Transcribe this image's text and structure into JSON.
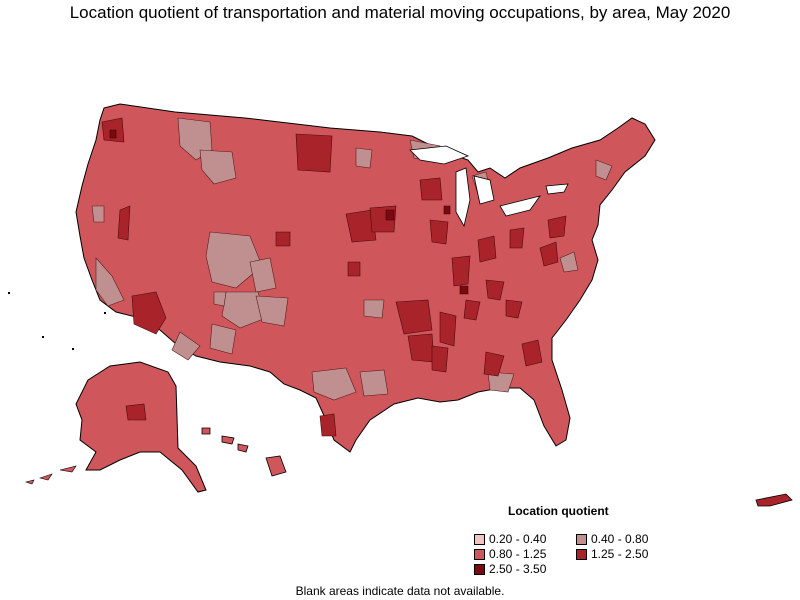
{
  "title": "Location quotient of transportation and material moving occupations, by area, May 2020",
  "legend": {
    "title": "Location quotient",
    "items": [
      {
        "label": "0.20 - 0.40",
        "color": "#f1c3c3"
      },
      {
        "label": "0.40 - 0.80",
        "color": "#c09090"
      },
      {
        "label": "0.80 - 1.25",
        "color": "#cf575c"
      },
      {
        "label": "1.25 - 2.50",
        "color": "#a8232a"
      },
      {
        "label": "2.50 - 3.50",
        "color": "#7a0a10"
      }
    ]
  },
  "note": "Blank areas indicate data not available.",
  "colors": {
    "border": "#000000",
    "inner_border": "#5a1a1c",
    "background": "#ffffff"
  }
}
